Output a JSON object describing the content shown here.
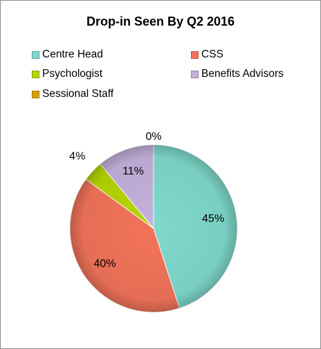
{
  "chart_data": {
    "type": "pie",
    "title": "Drop-in Seen By Q2 2016",
    "categories": [
      "Centre Head",
      "CSS",
      "Psychologist",
      "Benefits Advisors",
      "Sessional Staff"
    ],
    "values": [
      45,
      40,
      4,
      11,
      0
    ],
    "labels": [
      "45%",
      "40%",
      "4%",
      "11%",
      "0%"
    ],
    "colors": [
      "#7fd9cc",
      "#f2735a",
      "#b5d600",
      "#c4b0dc",
      "#d9a200"
    ],
    "legend_position": "top"
  }
}
